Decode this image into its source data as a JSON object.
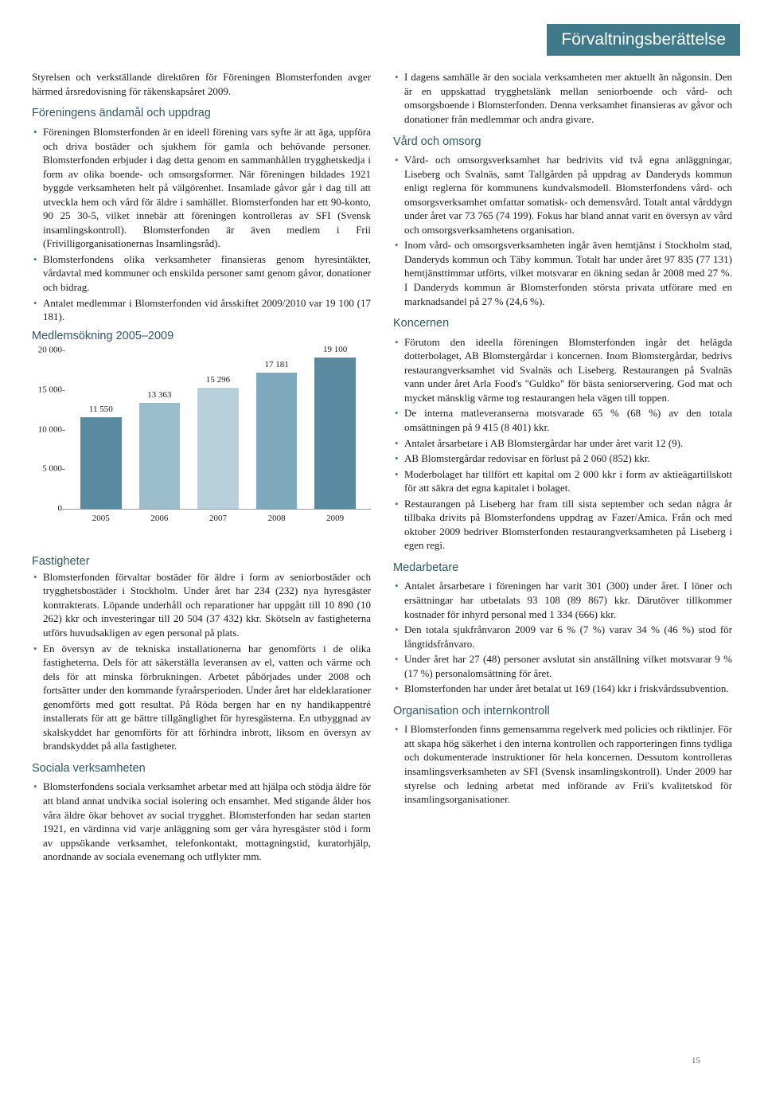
{
  "header": {
    "title": "Förvaltningsberättelse"
  },
  "page_number": "15",
  "left": {
    "intro": "Styrelsen och verkställande direktören för Föreningen Blomsterfonden avger härmed årsredovisning för räkenskapsåret 2009.",
    "s1_title": "Föreningens ändamål och uppdrag",
    "s1_items": [
      "Föreningen Blomsterfonden är en ideell förening vars syfte är att äga, uppföra och driva bostäder och sjukhem för gamla och behövande personer. Blomsterfonden erbjuder i dag detta genom en sammanhållen trygghetskedja i form av olika boende- och omsorgsformer. När föreningen bildades 1921 byggde verksamheten helt på välgörenhet. Insamlade gåvor går i dag till att utveckla hem och vård för äldre i samhället. Blomsterfonden har ett 90-konto, 90 25 30-5, vilket innebär att föreningen kontrolleras av SFI (Svensk insamlingskontroll). Blomsterfonden är även medlem i Frii (Frivilligorganisationernas Insamlingsråd).",
      "Blomsterfondens olika verksamheter finansieras genom hyresintäkter, vårdavtal med kommuner och enskilda personer samt genom gåvor, donationer och bidrag.",
      "Antalet medlemmar i Blomsterfonden vid årsskiftet 2009/2010 var 19 100 (17 181)."
    ],
    "chart": {
      "title": "Medlemsökning 2005–2009",
      "type": "bar",
      "categories": [
        "2005",
        "2006",
        "2007",
        "2008",
        "2009"
      ],
      "values": [
        11550,
        13363,
        15296,
        17181,
        19100
      ],
      "bar_labels": [
        "11 550",
        "13 363",
        "15 296",
        "17 181",
        "19 100"
      ],
      "bar_colors": [
        "#5a8aa0",
        "#9bbccb",
        "#b7d0dc",
        "#7ea9bd",
        "#5a8aa0"
      ],
      "ylim": [
        0,
        20000
      ],
      "yticks": [
        0,
        5000,
        10000,
        15000,
        20000
      ],
      "ytick_labels": [
        "0",
        "5 000",
        "10 000",
        "15 000",
        "20 000"
      ],
      "background_color": "#ffffff",
      "axis_color": "#888888",
      "tick_fontsize": 11,
      "label_fontsize": 11,
      "title_fontsize": 14.5,
      "bar_width": 0.7
    },
    "s2_title": "Fastigheter",
    "s2_items": [
      "Blomsterfonden förvaltar bostäder för äldre i form av seniorbostäder och trygghetsbostäder i Stockholm. Under året har 234 (232) nya hyresgäster kontrakterats. Löpande underhåll och reparationer har uppgått till 10 890 (10 262) kkr och investeringar till 20 504 (37 432) kkr. Skötseln av fastigheterna utförs huvudsakligen av egen personal på plats.",
      "En översyn av de tekniska installationerna har genomförts i de olika fastigheterna. Dels för att säkerställa leveransen av el, vatten och värme och dels för att minska förbrukningen. Arbetet påbörjades under 2008 och fortsätter under den kommande fyraårsperioden. Under året har eldeklarationer genomförts med gott resultat. På Röda bergen har en ny handikappentré installerats för att ge bättre tillgänglighet för hyresgästerna. En utbyggnad av skalskyddet har genomförts för att förhindra inbrott, liksom en översyn av brandskyddet på alla fastigheter."
    ],
    "s3_title": "Sociala verksamheten",
    "s3_items": [
      "Blomsterfondens sociala verksamhet arbetar med att hjälpa och stödja äldre för att bland annat undvika social isolering och ensamhet. Med stigande ålder hos våra äldre ökar behovet av social trygghet. Blomsterfonden har sedan starten 1921, en värdinna vid varje anläggning som ger våra hyresgäster stöd i form av uppsökande verksamhet, telefonkontakt, mottagningstid, kuratorhjälp, anordnande av sociala evenemang och utflykter mm."
    ]
  },
  "right": {
    "top_items": [
      "I dagens samhälle är den sociala verksamheten mer aktuellt än någonsin. Den är en uppskattad trygghetslänk mellan seniorboende och vård- och omsorgsboende i Blomsterfonden. Denna verksamhet finansieras av gåvor och donationer från medlemmar och andra givare."
    ],
    "r1_title": "Vård och omsorg",
    "r1_items": [
      "Vård- och omsorgsverksamhet har bedrivits vid två egna anläggningar, Liseberg och Svalnäs, samt Tallgården på uppdrag av Danderyds kommun enligt reglerna för kommunens kundvalsmodell. Blomsterfondens vård- och omsorgsverksamhet omfattar somatisk- och demensvård. Totalt antal vårddygn under året var 73 765 (74 199). Fokus har bland annat varit en översyn av vård och omsorgsverksamhetens organisation.",
      "Inom vård- och omsorgsverksamheten ingår även hemtjänst i Stockholm stad, Danderyds kommun och Täby kommun. Totalt har under året 97 835 (77 131) hemtjänsttimmar utförts, vilket motsvarar en ökning sedan år 2008 med 27 %. I Danderyds kommun är Blomsterfonden största privata utförare med en marknadsandel på 27 %  (24,6 %)."
    ],
    "r2_title": "Koncernen",
    "r2_items": [
      "Förutom den ideella föreningen Blomsterfonden ingår det helägda dotterbolaget, AB Blomstergårdar i koncernen. Inom Blomstergårdar, bedrivs restaurangverksamhet vid Svalnäs och Liseberg. Restaurangen på Svalnäs vann under året Arla Food's \"Guldko\" för bästa seniorservering. God mat och mycket mänsklig värme tog restaurangen hela vägen till toppen.",
      "De interna matleveranserna motsvarade 65 % (68 %) av den totala omsättningen på 9 415 (8 401) kkr.",
      "Antalet årsarbetare i AB Blomstergårdar har under året varit 12 (9).",
      "AB Blomstergårdar redovisar en förlust på 2 060 (852) kkr.",
      "Moderbolaget har tillfört ett kapital om 2 000 kkr i form av aktieägartillskott för att säkra det egna kapitalet i bolaget.",
      "Restaurangen på Liseberg har fram till sista september och sedan några år tillbaka drivits på Blomsterfondens uppdrag av Fazer/Amica. Från och med oktober 2009 bedriver Blomsterfonden restaurangverksamheten på Liseberg i egen regi."
    ],
    "r3_title": "Medarbetare",
    "r3_items": [
      "Antalet årsarbetare i föreningen har varit 301 (300) under året. I löner och ersättningar har utbetalats 93 108 (89 867) kkr. Därutöver tillkommer kostnader för inhyrd personal med 1 334 (666) kkr.",
      "Den totala sjukfrånvaron 2009 var 6 % (7 %) varav 34 % (46 %) stod för långtidsfrånvaro.",
      "Under året har 27 (48) personer avslutat sin anställning vilket motsvarar 9 % (17 %) personalomsättning för året.",
      "Blomsterfonden har under året betalat ut 169 (164) kkr i friskvårdssubvention."
    ],
    "r4_title": "Organisation och internkontroll",
    "r4_items": [
      "I Blomsterfonden finns gemensamma regelverk med policies och riktlinjer. För att skapa hög säkerhet i den interna kontrollen och rapporteringen finns tydliga och dokumenterade instruktioner för hela koncernen. Dessutom kontrolleras insamlingsverksamheten av SFI (Svensk insamlingskontroll). Under 2009 har styrelse och ledning arbetat med införande av Frii's kvalitetskod för insamlingsorganisationer."
    ]
  }
}
